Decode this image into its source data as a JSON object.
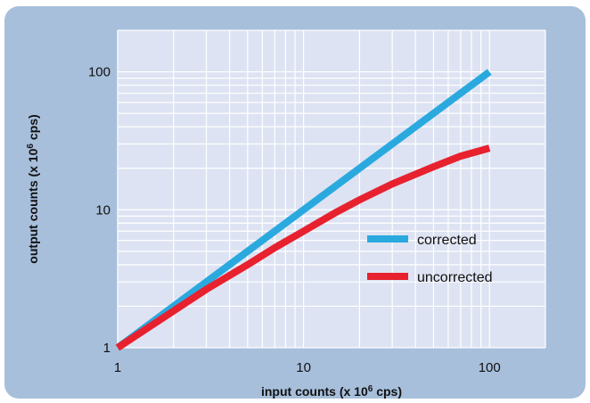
{
  "chart_data": {
    "type": "line",
    "xscale": "log",
    "yscale": "log",
    "xlim": [
      1,
      200
    ],
    "ylim": [
      1,
      200
    ],
    "x_ticks": [
      1,
      10,
      100
    ],
    "x_tick_labels": [
      "1",
      "10",
      "100"
    ],
    "y_ticks": [
      1,
      10,
      100
    ],
    "y_tick_labels": [
      "1",
      "10",
      "100"
    ],
    "grid": true,
    "xlabel": {
      "text": "input counts (x 10",
      "sup": "6",
      "tail": " cps)"
    },
    "ylabel": {
      "text": "output counts (x 10",
      "sup": "6",
      "tail": " cps)"
    },
    "legend_position": "center-right",
    "series": [
      {
        "name": "corrected",
        "color": "#2aa9df",
        "x": [
          1,
          100
        ],
        "y": [
          1,
          100
        ]
      },
      {
        "name": "uncorrected",
        "color": "#e8212e",
        "x": [
          1,
          2,
          3,
          5,
          7,
          10,
          15,
          20,
          30,
          50,
          70,
          100
        ],
        "y": [
          1,
          1.85,
          2.65,
          4.0,
          5.3,
          7.0,
          9.6,
          11.8,
          15.4,
          20.5,
          24.5,
          28.0
        ]
      }
    ]
  }
}
